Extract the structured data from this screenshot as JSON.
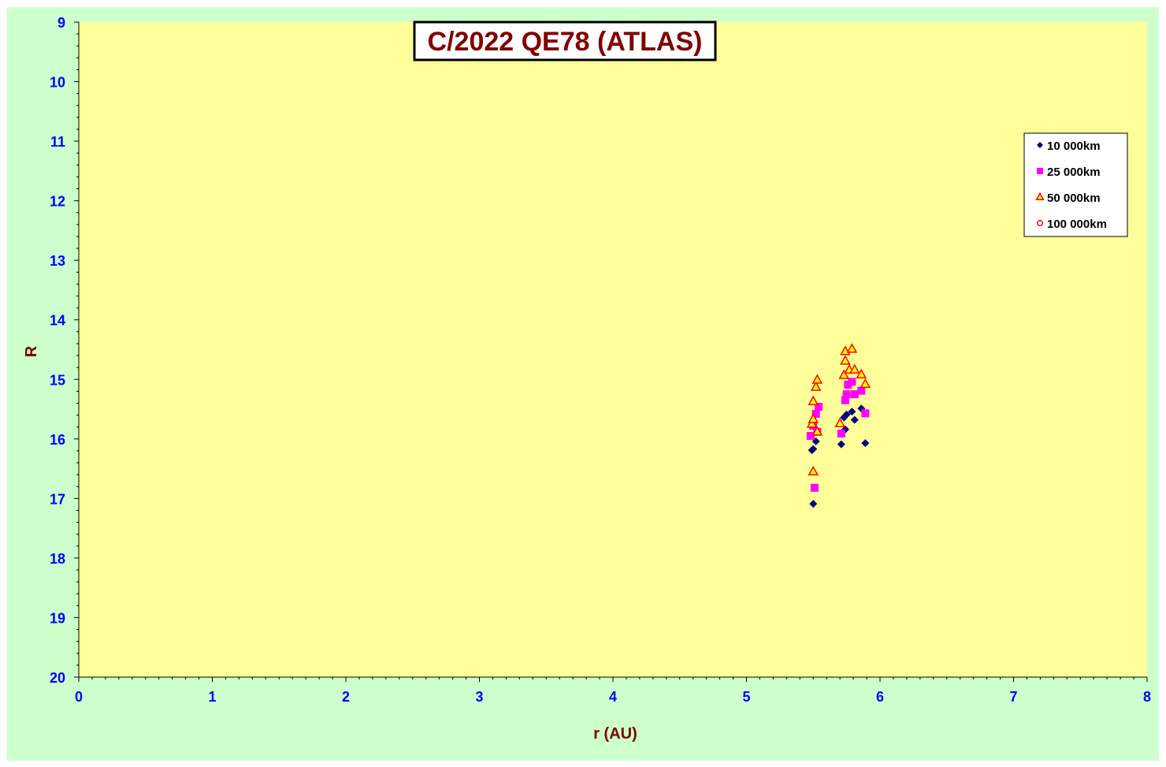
{
  "chart_data": {
    "type": "scatter",
    "title": "C/2022 QE78 (ATLAS)",
    "xlabel": "r (AU)",
    "ylabel": "R",
    "xlim": [
      0,
      8
    ],
    "ylim": [
      20,
      9
    ],
    "y_inverted": true,
    "xticks": [
      "0",
      "1",
      "2",
      "3",
      "4",
      "5",
      "6",
      "7",
      "8"
    ],
    "yticks": [
      "9",
      "10",
      "11",
      "12",
      "13",
      "14",
      "15",
      "16",
      "17",
      "18",
      "19",
      "20"
    ],
    "grid": false,
    "legend_position": "right",
    "colors": {
      "background": "#CCFFCC",
      "plot_area": "#FFFF99",
      "axis_text": "#0000FF",
      "title_text": "#800000"
    },
    "series": [
      {
        "name": "10 000km",
        "marker": "diamond",
        "color": "#000080",
        "points": [
          [
            5.49,
            16.19
          ],
          [
            5.5,
            16.17
          ],
          [
            5.52,
            16.04
          ],
          [
            5.5,
            17.09
          ],
          [
            5.71,
            16.09
          ],
          [
            5.74,
            15.84
          ],
          [
            5.73,
            15.64
          ],
          [
            5.75,
            15.59
          ],
          [
            5.79,
            15.54
          ],
          [
            5.81,
            15.68
          ],
          [
            5.86,
            15.49
          ],
          [
            5.89,
            16.07
          ]
        ]
      },
      {
        "name": "25 000km",
        "marker": "square",
        "color": "#FF00FF",
        "points": [
          [
            5.48,
            15.95
          ],
          [
            5.5,
            15.78
          ],
          [
            5.52,
            15.58
          ],
          [
            5.54,
            15.46
          ],
          [
            5.53,
            15.88
          ],
          [
            5.51,
            16.82
          ],
          [
            5.71,
            15.91
          ],
          [
            5.74,
            15.35
          ],
          [
            5.75,
            15.25
          ],
          [
            5.76,
            15.09
          ],
          [
            5.79,
            15.04
          ],
          [
            5.81,
            15.25
          ],
          [
            5.86,
            15.19
          ],
          [
            5.89,
            15.57
          ]
        ]
      },
      {
        "name": "50 000km",
        "marker": "triangle",
        "color": "#FFFF00",
        "edge": "#FF0000",
        "points": [
          [
            5.49,
            15.75
          ],
          [
            5.5,
            15.37
          ],
          [
            5.52,
            15.13
          ],
          [
            5.53,
            15.01
          ],
          [
            5.5,
            15.67
          ],
          [
            5.53,
            15.88
          ],
          [
            5.5,
            16.55
          ],
          [
            5.7,
            15.74
          ],
          [
            5.73,
            14.93
          ],
          [
            5.74,
            14.69
          ],
          [
            5.74,
            14.53
          ],
          [
            5.79,
            14.49
          ],
          [
            5.77,
            14.84
          ],
          [
            5.81,
            14.84
          ],
          [
            5.86,
            14.92
          ],
          [
            5.89,
            15.08
          ]
        ]
      },
      {
        "name": "100 000km",
        "marker": "circle",
        "color": "#FFFFFF",
        "edge": "#FF0000",
        "points": []
      }
    ]
  }
}
